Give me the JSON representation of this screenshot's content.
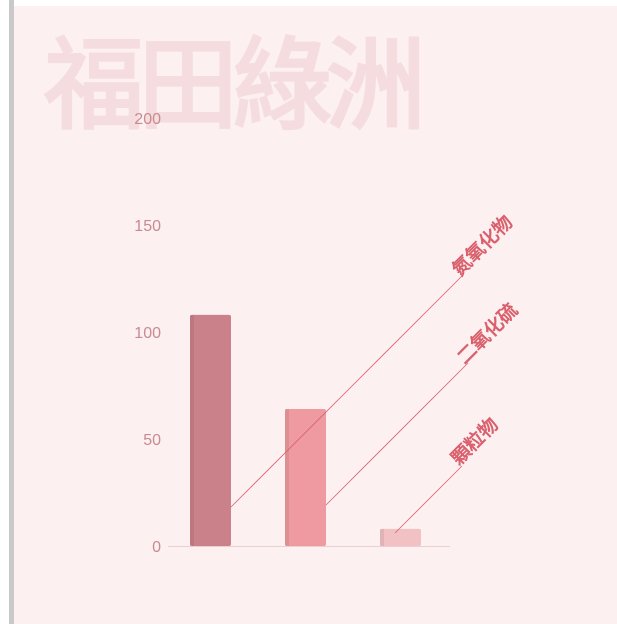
{
  "watermark_text": "福田綠洲",
  "colors": {
    "background": "#fcf0f1",
    "watermark": "#f5dcdf",
    "axis_text": "#c98a90",
    "label_text": "#d9606c",
    "leader_line": "#d9606c"
  },
  "chart_data": {
    "type": "bar",
    "categories": [
      "氮氧化物",
      "二氧化硫",
      "顆粒物"
    ],
    "values": [
      108,
      64,
      8
    ],
    "bar_colors": [
      "#cb8189",
      "#ee9aa0",
      "#f2c1c3"
    ],
    "ylim": [
      0,
      200
    ],
    "yticks": [
      "0",
      "50",
      "100",
      "150",
      "200"
    ],
    "grid": false,
    "legend": "none"
  }
}
